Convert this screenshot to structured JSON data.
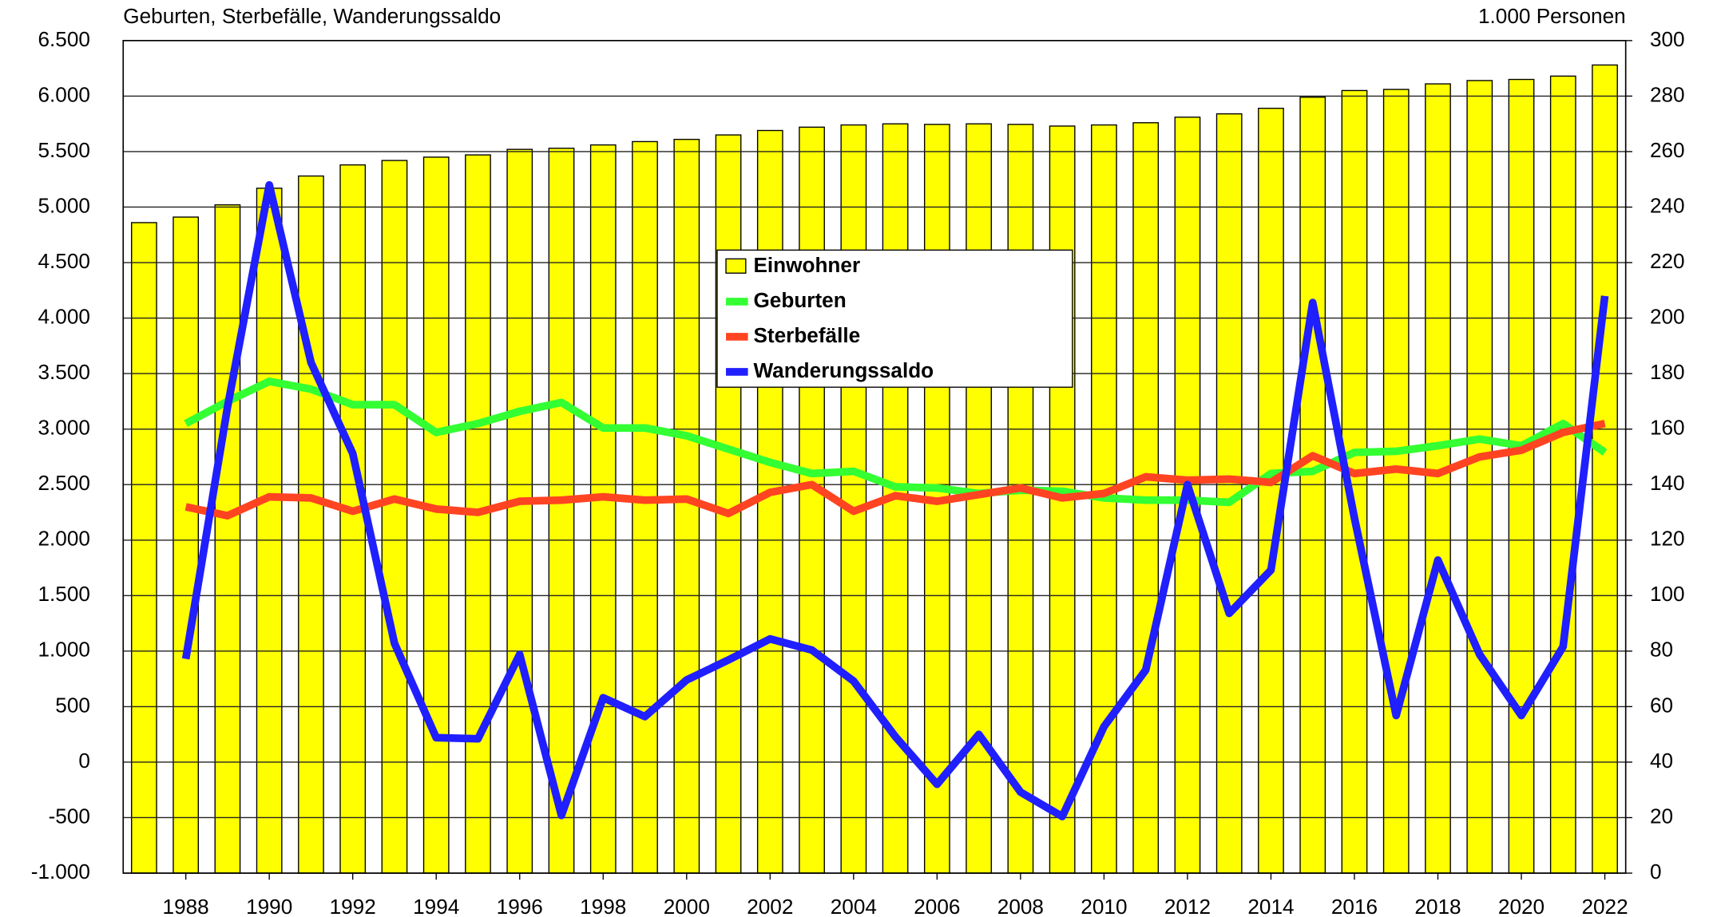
{
  "chart_data": {
    "type": "bar-line",
    "left_axis_label": "Geburten, Sterbefälle, Wanderungssaldo",
    "right_axis_label": "1.000 Personen",
    "xlim": [
      1986.5,
      2022.5
    ],
    "xticks": [
      1988,
      1990,
      1992,
      1994,
      1996,
      1998,
      2000,
      2002,
      2004,
      2006,
      2008,
      2010,
      2012,
      2014,
      2016,
      2018,
      2020,
      2022
    ],
    "ylim": [
      -1000,
      6500
    ],
    "yticks": [
      {
        "value": -1000,
        "label": "-1.000"
      },
      -500,
      0,
      500,
      {
        "value": 1000,
        "label": "1.000"
      },
      {
        "value": 1500,
        "label": "1.500"
      },
      {
        "value": 2000,
        "label": "2.000"
      },
      {
        "value": 2500,
        "label": "2.500"
      },
      {
        "value": 3000,
        "label": "3.000"
      },
      {
        "value": 3500,
        "label": "3.500"
      },
      {
        "value": 4000,
        "label": "4.000"
      },
      {
        "value": 4500,
        "label": "4.500"
      },
      {
        "value": 5000,
        "label": "5.000"
      },
      {
        "value": 5500,
        "label": "5.500"
      },
      {
        "value": 6000,
        "label": "6.000"
      },
      {
        "value": 6500,
        "label": "6.500"
      }
    ],
    "y2lim": [
      0,
      300
    ],
    "y2ticks": [
      0,
      20,
      40,
      60,
      80,
      100,
      120,
      140,
      160,
      180,
      200,
      220,
      240,
      260,
      280,
      300
    ],
    "grid": true,
    "bars": {
      "name": "Einwohner",
      "color": "#ffff00",
      "axis": "y2",
      "x": [
        1987,
        1988,
        1989,
        1990,
        1991,
        1992,
        1993,
        1994,
        1995,
        1996,
        1997,
        1998,
        1999,
        2000,
        2001,
        2002,
        2003,
        2004,
        2005,
        2006,
        2007,
        2008,
        2009,
        2010,
        2011,
        2012,
        2013,
        2014,
        2015,
        2016,
        2017,
        2018,
        2019,
        2020,
        2021,
        2022
      ],
      "values": [
        234.4,
        236.4,
        240.8,
        246.8,
        251.2,
        255.2,
        256.8,
        258,
        258.8,
        260.8,
        261.2,
        262.4,
        263.6,
        264.4,
        266,
        267.6,
        268.8,
        269.6,
        270,
        269.8,
        270,
        269.8,
        269.2,
        269.6,
        270.4,
        272.4,
        273.6,
        275.6,
        279.6,
        282,
        282.4,
        284.4,
        285.6,
        286,
        287.2,
        291.2
      ]
    },
    "x": [
      1988,
      1989,
      1990,
      1991,
      1992,
      1993,
      1994,
      1995,
      1996,
      1997,
      1998,
      1999,
      2000,
      2001,
      2002,
      2003,
      2004,
      2005,
      2006,
      2007,
      2008,
      2009,
      2010,
      2011,
      2012,
      2013,
      2014,
      2015,
      2016,
      2017,
      2018,
      2019,
      2020,
      2021,
      2022
    ],
    "series": [
      {
        "name": "Geburten",
        "color": "#33ff33",
        "values": [
          3050,
          3250,
          3430,
          3360,
          3220,
          3220,
          2970,
          3050,
          3160,
          3240,
          3010,
          3010,
          2940,
          2820,
          2700,
          2600,
          2620,
          2480,
          2470,
          2420,
          2450,
          2440,
          2380,
          2360,
          2360,
          2340,
          2600,
          2620,
          2790,
          2800,
          2850,
          2910,
          2850,
          3050,
          2790
        ]
      },
      {
        "name": "Sterbefälle",
        "color": "#ff4422",
        "values": [
          2300,
          2220,
          2390,
          2380,
          2260,
          2370,
          2280,
          2250,
          2350,
          2360,
          2390,
          2360,
          2370,
          2240,
          2430,
          2500,
          2260,
          2400,
          2350,
          2410,
          2470,
          2380,
          2420,
          2570,
          2540,
          2550,
          2520,
          2760,
          2600,
          2640,
          2600,
          2750,
          2810,
          2970,
          3050
        ]
      },
      {
        "name": "Wanderungssaldo",
        "color": "#1f1fff",
        "values": [
          930,
          3200,
          5200,
          3600,
          2780,
          1070,
          220,
          210,
          970,
          -480,
          580,
          410,
          740,
          920,
          1110,
          1010,
          730,
          230,
          -200,
          250,
          -270,
          -490,
          320,
          830,
          2500,
          1340,
          1730,
          4140,
          2200,
          420,
          1820,
          970,
          420,
          1040,
          4200
        ]
      }
    ]
  }
}
